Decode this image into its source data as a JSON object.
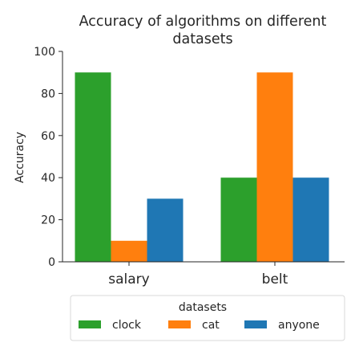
{
  "chart_data": {
    "type": "bar",
    "title_lines": [
      "Accuracy of algorithms on different",
      "datasets"
    ],
    "xlabel": "",
    "ylabel": "Accuracy",
    "categories": [
      "salary",
      "belt"
    ],
    "series": [
      {
        "name": "clock",
        "values": [
          90,
          40
        ],
        "color": "#2ca02c"
      },
      {
        "name": "cat",
        "values": [
          10,
          90
        ],
        "color": "#ff7f0e"
      },
      {
        "name": "anyone",
        "values": [
          30,
          40
        ],
        "color": "#1f77b4"
      }
    ],
    "ylim": [
      0,
      100
    ],
    "yticks": [
      0,
      20,
      40,
      60,
      80,
      100
    ],
    "grid": false,
    "legend": {
      "title": "datasets",
      "placement": "bottom-center"
    }
  }
}
